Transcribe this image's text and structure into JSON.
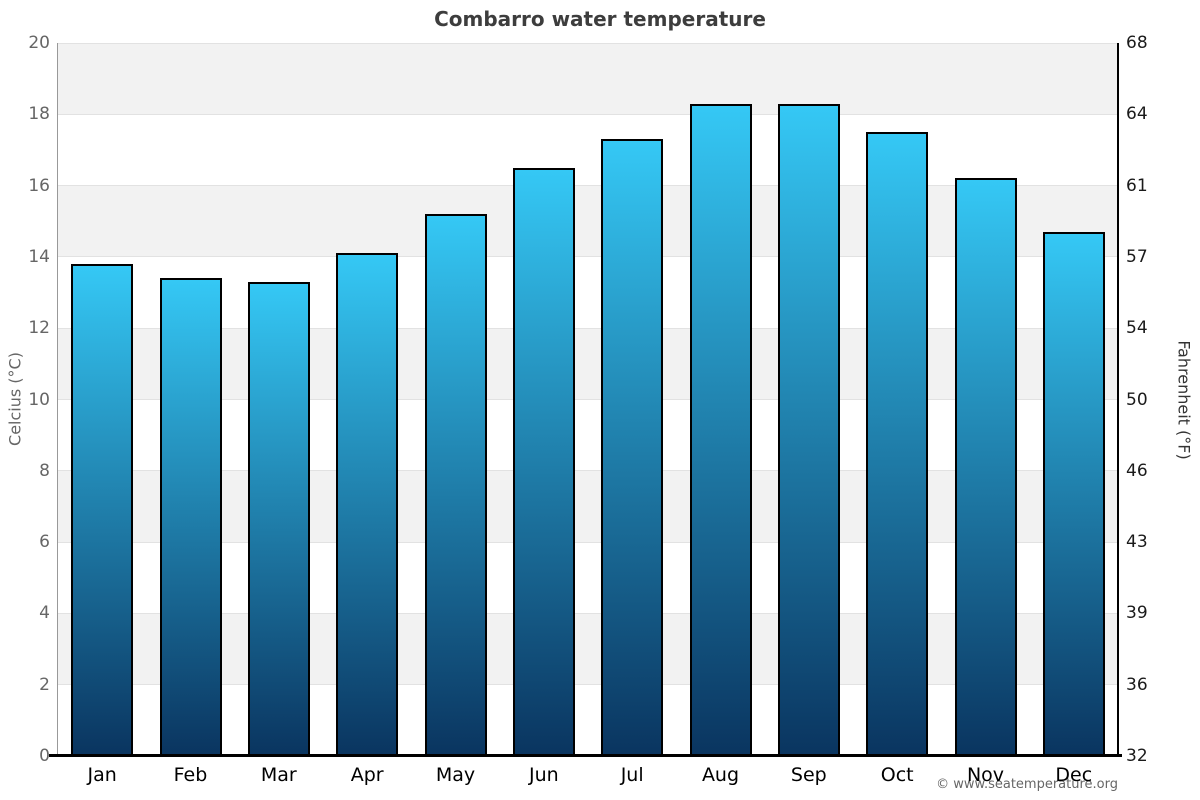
{
  "title": "Combarro water temperature",
  "watermark": "© www.seatemperature.org",
  "chart_data": {
    "type": "bar",
    "title": "Combarro water temperature",
    "categories": [
      "Jan",
      "Feb",
      "Mar",
      "Apr",
      "May",
      "Jun",
      "Jul",
      "Aug",
      "Sep",
      "Oct",
      "Nov",
      "Dec"
    ],
    "values": [
      13.8,
      13.4,
      13.3,
      14.1,
      15.2,
      16.5,
      17.3,
      18.3,
      18.3,
      17.5,
      16.2,
      14.7
    ],
    "unit": "°C",
    "xlabel": "",
    "ylabel_left": "Celcius (°C)",
    "ylabel_right": "Fahrenheit (°F)",
    "ylim": [
      0,
      20
    ],
    "yticks_celsius": [
      0,
      2,
      4,
      6,
      8,
      10,
      12,
      14,
      16,
      18,
      20
    ],
    "yticks_fahrenheit": [
      32,
      36,
      39,
      43,
      46,
      50,
      54,
      57,
      61,
      64,
      68
    ],
    "grid": "alternating-horizontal-bands",
    "legend": "none",
    "colors": {
      "bar_gradient_top": "#35c8f5",
      "bar_gradient_bottom": "#0a3560",
      "bar_border": "#000000",
      "band_gray": "#f2f2f2",
      "gridline": "#e2e2e2",
      "axis_left": "#999999",
      "axis_right": "#000000",
      "axis_bottom": "#000000",
      "tick_celsius": "#666666",
      "tick_fahrenheit": "#1a1a1a",
      "month_label": "#000000",
      "title": "#3d3d3d",
      "watermark": "#666666"
    }
  }
}
